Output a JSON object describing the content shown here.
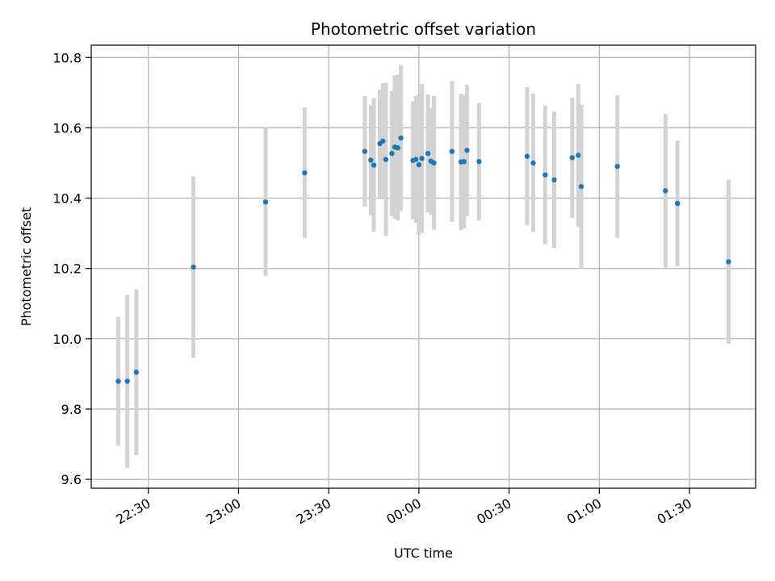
{
  "chart_data": {
    "type": "scatter",
    "title": "Photometric offset variation",
    "xlabel": "UTC time",
    "ylabel": "Photometric offset",
    "x_tick_labels": [
      "22:30",
      "23:00",
      "23:30",
      "00:00",
      "00:30",
      "01:00",
      "01:30"
    ],
    "y_tick_labels": [
      "9.6",
      "9.8",
      "10.0",
      "10.2",
      "10.4",
      "10.6",
      "10.8"
    ],
    "x_ticks": [
      "22:30",
      "23:00",
      "23:30",
      "00:00",
      "00:30",
      "01:00",
      "01:30"
    ],
    "y_ticks": [
      9.6,
      9.8,
      10.0,
      10.2,
      10.4,
      10.6,
      10.8
    ],
    "xlim": [
      "22:11",
      "01:52"
    ],
    "ylim": [
      9.575,
      10.835
    ],
    "grid": true,
    "point_color": "#1f77b4",
    "errorbar_color": "#d3d3d3",
    "points": [
      {
        "x": "22:20",
        "y": 9.879,
        "err": 0.183
      },
      {
        "x": "22:23",
        "y": 9.879,
        "err": 0.246
      },
      {
        "x": "22:26",
        "y": 9.905,
        "err": 0.236
      },
      {
        "x": "22:45",
        "y": 10.204,
        "err": 0.258
      },
      {
        "x": "23:09",
        "y": 10.389,
        "err": 0.211
      },
      {
        "x": "23:22",
        "y": 10.472,
        "err": 0.186
      },
      {
        "x": "23:42",
        "y": 10.533,
        "err": 0.157
      },
      {
        "x": "23:44",
        "y": 10.508,
        "err": 0.157
      },
      {
        "x": "23:45",
        "y": 10.494,
        "err": 0.19
      },
      {
        "x": "23:47",
        "y": 10.555,
        "err": 0.153
      },
      {
        "x": "23:48",
        "y": 10.562,
        "err": 0.165
      },
      {
        "x": "23:49",
        "y": 10.51,
        "err": 0.218
      },
      {
        "x": "23:51",
        "y": 10.527,
        "err": 0.178
      },
      {
        "x": "23:52",
        "y": 10.545,
        "err": 0.204
      },
      {
        "x": "23:53",
        "y": 10.543,
        "err": 0.207
      },
      {
        "x": "23:54",
        "y": 10.571,
        "err": 0.208
      },
      {
        "x": "23:58",
        "y": 10.507,
        "err": 0.168
      },
      {
        "x": "23:59",
        "y": 10.51,
        "err": 0.18
      },
      {
        "x": "00:00",
        "y": 10.495,
        "err": 0.199
      },
      {
        "x": "00:01",
        "y": 10.513,
        "err": 0.212
      },
      {
        "x": "00:03",
        "y": 10.527,
        "err": 0.168
      },
      {
        "x": "00:04",
        "y": 10.505,
        "err": 0.152
      },
      {
        "x": "00:05",
        "y": 10.5,
        "err": 0.19
      },
      {
        "x": "00:11",
        "y": 10.533,
        "err": 0.2
      },
      {
        "x": "00:14",
        "y": 10.503,
        "err": 0.194
      },
      {
        "x": "00:15",
        "y": 10.504,
        "err": 0.19
      },
      {
        "x": "00:16",
        "y": 10.536,
        "err": 0.187
      },
      {
        "x": "00:20",
        "y": 10.504,
        "err": 0.167
      },
      {
        "x": "00:36",
        "y": 10.519,
        "err": 0.197
      },
      {
        "x": "00:38",
        "y": 10.5,
        "err": 0.197
      },
      {
        "x": "00:42",
        "y": 10.466,
        "err": 0.197
      },
      {
        "x": "00:45",
        "y": 10.452,
        "err": 0.194
      },
      {
        "x": "00:51",
        "y": 10.515,
        "err": 0.171
      },
      {
        "x": "00:53",
        "y": 10.522,
        "err": 0.203
      },
      {
        "x": "00:54",
        "y": 10.433,
        "err": 0.233
      },
      {
        "x": "01:06",
        "y": 10.49,
        "err": 0.203
      },
      {
        "x": "01:22",
        "y": 10.421,
        "err": 0.218
      },
      {
        "x": "01:26",
        "y": 10.385,
        "err": 0.179
      },
      {
        "x": "01:43",
        "y": 10.219,
        "err": 0.234
      }
    ]
  }
}
